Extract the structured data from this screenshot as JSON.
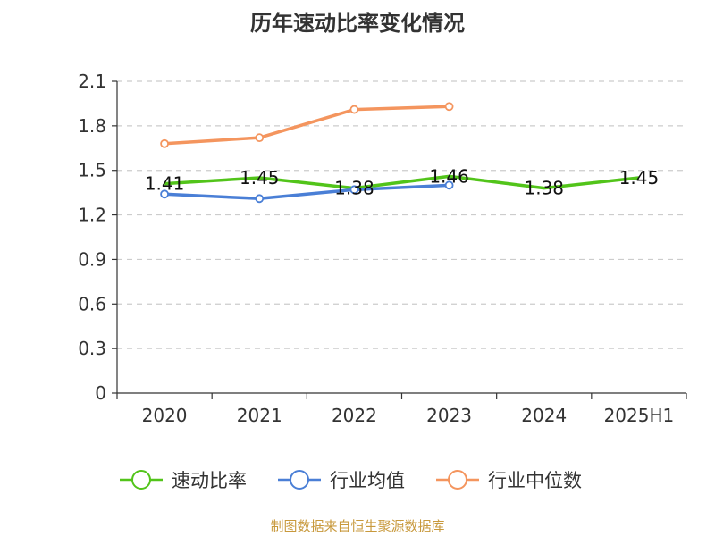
{
  "source_note": "制图数据来自恒生聚源数据库",
  "chart_data": {
    "type": "line",
    "title": "历年速动比率变化情况",
    "categories": [
      "2020",
      "2021",
      "2022",
      "2023",
      "2024",
      "2025H1"
    ],
    "y_ticks": [
      "0",
      "0.3",
      "0.6",
      "0.9",
      "1.2",
      "1.5",
      "1.8",
      "2.1"
    ],
    "ylim": [
      0,
      2.1
    ],
    "grid": true,
    "legend_position": "bottom",
    "series": [
      {
        "name": "速动比率",
        "values": [
          1.41,
          1.45,
          1.38,
          1.46,
          1.38,
          1.45
        ],
        "labels": [
          "1.41",
          "1.45",
          "1.38",
          "1.46",
          "1.38",
          "1.45"
        ],
        "color": "#52c41a",
        "markers": false
      },
      {
        "name": "行业均值",
        "values": [
          1.34,
          1.31,
          1.37,
          1.4,
          null,
          null
        ],
        "color": "#4a7fd6",
        "markers": true
      },
      {
        "name": "行业中位数",
        "values": [
          1.68,
          1.72,
          1.91,
          1.93,
          null,
          null
        ],
        "color": "#f4955e",
        "markers": true
      }
    ]
  }
}
